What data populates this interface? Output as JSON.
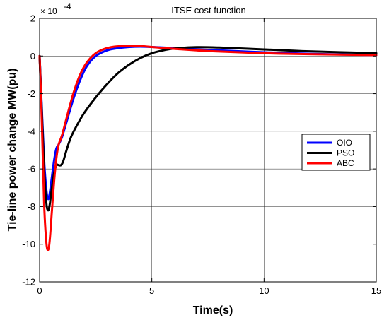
{
  "chart_data": {
    "type": "line",
    "title": "ITSE cost function",
    "xlabel": "Time(s)",
    "ylabel": "Tie-line power change MW(pu)",
    "y_multiplier": "× 10",
    "y_multiplier_exponent": "-4",
    "xlim": [
      0,
      15
    ],
    "ylim": [
      -12,
      2
    ],
    "xticks": [
      0,
      5,
      10,
      15
    ],
    "yticks": [
      -12,
      -10,
      -8,
      -6,
      -4,
      -2,
      0,
      2
    ],
    "grid": true,
    "legend_position": "right",
    "series": [
      {
        "name": "OIO",
        "color": "#0000ff",
        "x": [
          0,
          0.1,
          0.2,
          0.3,
          0.38,
          0.45,
          0.55,
          0.65,
          0.75,
          0.85,
          1.0,
          1.2,
          1.5,
          1.8,
          2.1,
          2.5,
          3.0,
          3.5,
          4.0,
          4.5,
          5.0,
          6.0,
          7.0,
          8.0,
          10.0,
          12.0,
          15.0
        ],
        "y": [
          0,
          -2.8,
          -5.5,
          -7.1,
          -7.6,
          -7.3,
          -6.4,
          -5.5,
          -4.9,
          -4.7,
          -4.3,
          -3.5,
          -2.3,
          -1.3,
          -0.55,
          0.0,
          0.3,
          0.42,
          0.48,
          0.5,
          0.48,
          0.42,
          0.36,
          0.3,
          0.2,
          0.12,
          0.05
        ]
      },
      {
        "name": "PSO",
        "color": "#000000",
        "x": [
          0,
          0.1,
          0.2,
          0.3,
          0.38,
          0.45,
          0.55,
          0.65,
          0.75,
          0.85,
          0.95,
          1.05,
          1.2,
          1.4,
          1.7,
          2.0,
          2.5,
          3.0,
          3.5,
          4.0,
          4.5,
          5.0,
          5.5,
          6.0,
          7.0,
          8.0,
          10.0,
          12.0,
          15.0
        ],
        "y": [
          0,
          -3.0,
          -6.0,
          -7.8,
          -8.2,
          -7.9,
          -7.0,
          -6.2,
          -5.8,
          -5.8,
          -5.8,
          -5.6,
          -5.0,
          -4.3,
          -3.6,
          -3.0,
          -2.2,
          -1.5,
          -0.9,
          -0.45,
          -0.1,
          0.15,
          0.3,
          0.4,
          0.47,
          0.45,
          0.35,
          0.25,
          0.15
        ]
      },
      {
        "name": "ABC",
        "color": "#ff0000",
        "x": [
          0,
          0.1,
          0.2,
          0.3,
          0.38,
          0.45,
          0.55,
          0.65,
          0.75,
          0.85,
          1.0,
          1.2,
          1.5,
          1.8,
          2.1,
          2.5,
          3.0,
          3.5,
          4.0,
          4.5,
          5.0,
          6.0,
          7.0,
          8.0,
          10.0,
          12.0,
          15.0
        ],
        "y": [
          0,
          -3.5,
          -7.8,
          -9.9,
          -10.3,
          -9.8,
          -8.2,
          -6.6,
          -5.4,
          -4.7,
          -4.2,
          -3.3,
          -2.0,
          -1.0,
          -0.35,
          0.15,
          0.42,
          0.52,
          0.55,
          0.53,
          0.48,
          0.38,
          0.3,
          0.24,
          0.15,
          0.1,
          0.05
        ]
      }
    ]
  }
}
